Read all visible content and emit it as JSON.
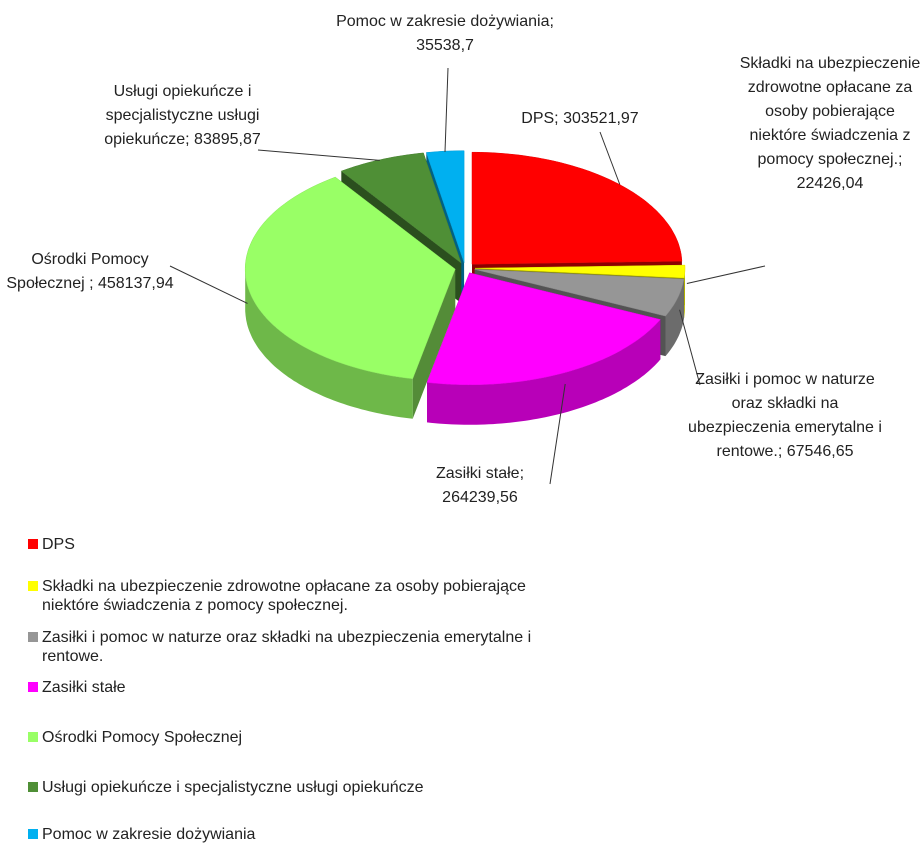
{
  "chart_data": {
    "type": "pie",
    "categories": [
      "DPS",
      "Składki na ubezpieczenie zdrowotne opłacane za osoby pobierające niektóre świadczenia z pomocy społecznej.",
      "Zasiłki i pomoc w naturze oraz składki na ubezpieczenia emerytalne  i rentowe.",
      "Zasiłki stałe",
      "Ośrodki Pomocy Społecznej",
      "Usługi opiekuńcze i specjalistyczne usługi opiekuńcze",
      "Pomoc w zakresie dożywiania"
    ],
    "values": [
      303521.97,
      22426.04,
      67546.65,
      264239.56,
      458137.94,
      83895.87,
      35538.7
    ],
    "value_labels": [
      "DPS; 303521,97",
      "Składki na ubezpieczenie zdrowotne opłacane za osoby pobierające niektóre świadczenia z pomocy społecznej.; 22426,04",
      "Zasiłki i pomoc w naturze oraz składki na ubezpieczenia emerytalne  i rentowe.; 67546,65",
      "Zasiłki stałe; 264239,56",
      "Ośrodki Pomocy Społecznej ; 458137,94",
      "Usługi opiekuńcze i specjalistyczne usługi opiekuńcze; 83895,87",
      "Pomoc w zakresie dożywiania; 35538,7"
    ],
    "colors": [
      "#ff0000",
      "#ffff00",
      "#969696",
      "#ff00ff",
      "#99ff66",
      "#4f8f36",
      "#00b0f0"
    ],
    "three_d": true,
    "exploded": true,
    "legend": "bottom"
  }
}
